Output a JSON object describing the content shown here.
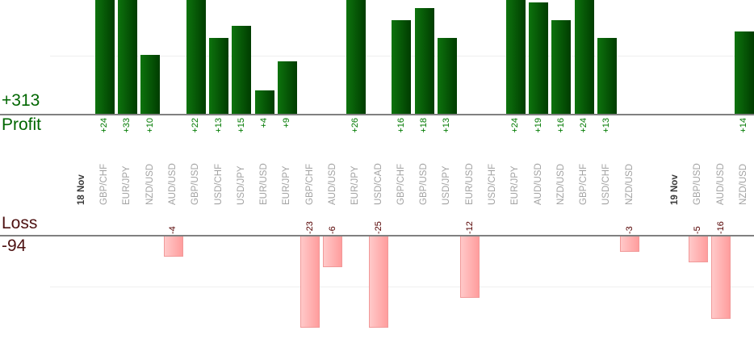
{
  "left_panel": {
    "profit_total": "+313",
    "profit_label": "Profit",
    "loss_label": "Loss",
    "loss_total": "-94"
  },
  "colors": {
    "profit_bar_light": "#0d730d",
    "profit_bar_dark": "#003c00",
    "loss_bar_light": "#ffc9c9",
    "loss_bar_dark": "#ff9d9d",
    "loss_bar_border": "#f19999",
    "profit_text": "#006600",
    "profit_value_text": "#007a00",
    "loss_text": "#4d1111",
    "loss_value_text": "#550000",
    "category_text": "#a2a2a2",
    "date_text": "#3a3a3a",
    "axis_line": "#808080",
    "gridline": "#efefef"
  },
  "chart_data": {
    "type": "bar",
    "title": "",
    "description": "Daily trade results by currency pair: profit bars above upper axis, loss bars below lower axis",
    "panels": [
      {
        "name": "Profit",
        "total": 313,
        "total_label": "+313",
        "gridline_value": 10,
        "visible_value_range": [
          0,
          19.5
        ],
        "bars_clipped_above": 19.5
      },
      {
        "name": "Loss",
        "total": -94,
        "total_label": "-94",
        "gridline_value": -10,
        "visible_value_range": [
          0,
          -17.8
        ],
        "bars_clipped_below": -17.8
      }
    ],
    "legend_position": "left",
    "grid": true,
    "columns": [
      {
        "label": "18 Nov",
        "date": true
      },
      {
        "label": "GBP/CHF",
        "profit": 24,
        "profit_label": "+24"
      },
      {
        "label": "EUR/JPY",
        "profit": 33,
        "profit_label": "+33"
      },
      {
        "label": "NZD/USD",
        "profit": 10,
        "profit_label": "+10"
      },
      {
        "label": "AUD/USD",
        "loss": 4,
        "loss_label": "-4"
      },
      {
        "label": "GBP/USD",
        "profit": 22,
        "profit_label": "+22"
      },
      {
        "label": "USD/CHF",
        "profit": 13,
        "profit_label": "+13"
      },
      {
        "label": "USD/JPY",
        "profit": 15,
        "profit_label": "+15"
      },
      {
        "label": "EUR/USD",
        "profit": 4,
        "profit_label": "+4"
      },
      {
        "label": "EUR/JPY",
        "profit": 9,
        "profit_label": "+9"
      },
      {
        "label": "GBP/CHF",
        "loss": 23,
        "loss_label": "-23"
      },
      {
        "label": "AUD/USD",
        "loss": 6,
        "loss_label": "-6"
      },
      {
        "label": "EUR/JPY",
        "profit": 26,
        "profit_label": "+26"
      },
      {
        "label": "USD/CAD",
        "loss": 25,
        "loss_label": "-25"
      },
      {
        "label": "GBP/CHF",
        "profit": 16,
        "profit_label": "+16"
      },
      {
        "label": "GBP/USD",
        "profit": 18,
        "profit_label": "+18"
      },
      {
        "label": "USD/JPY",
        "profit": 13,
        "profit_label": "+13"
      },
      {
        "label": "EUR/USD",
        "loss": 12,
        "loss_label": "-12"
      },
      {
        "label": "USD/CHF"
      },
      {
        "label": "EUR/JPY",
        "profit": 24,
        "profit_label": "+24"
      },
      {
        "label": "AUD/USD",
        "profit": 19,
        "profit_label": "+19"
      },
      {
        "label": "NZD/USD",
        "profit": 16,
        "profit_label": "+16"
      },
      {
        "label": "GBP/CHF",
        "profit": 24,
        "profit_label": "+24"
      },
      {
        "label": "USD/CHF",
        "profit": 13,
        "profit_label": "+13"
      },
      {
        "label": "NZD/USD",
        "loss": 3,
        "loss_label": "-3"
      },
      {
        "label": "",
        "spacer": true
      },
      {
        "label": "19 Nov",
        "date": true
      },
      {
        "label": "GBP/USD",
        "loss": 5,
        "loss_label": "-5"
      },
      {
        "label": "AUD/USD",
        "loss": 16,
        "loss_label": "-16"
      },
      {
        "label": "NZD/USD",
        "profit": 14,
        "profit_label": "+14"
      }
    ]
  }
}
